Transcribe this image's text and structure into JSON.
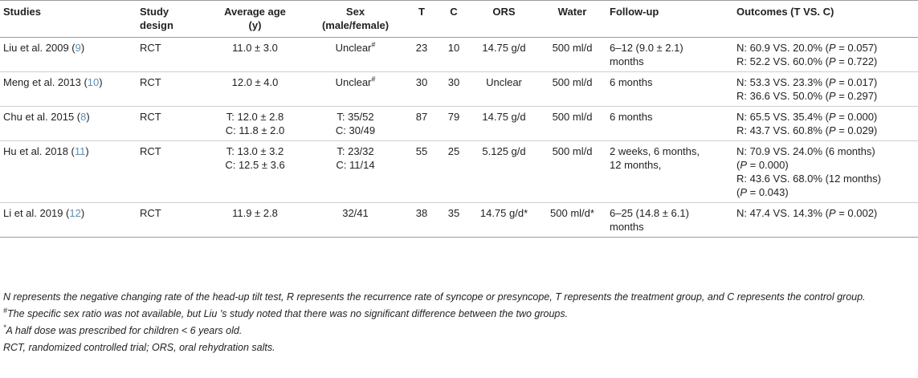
{
  "headers": {
    "studies": "Studies",
    "design_l1": "Study",
    "design_l2": "design",
    "age_l1": "Average age",
    "age_l2": "(y)",
    "sex_l1": "Sex",
    "sex_l2": "(male/female)",
    "t": "T",
    "c": "C",
    "ors": "ORS",
    "water": "Water",
    "followup": "Follow-up",
    "outcomes": "Outcomes (T VS. C)"
  },
  "rows": [
    {
      "study": "Liu et al. 2009 (",
      "ref": "9",
      "close": ")",
      "design": "RCT",
      "age1": "11.0 ± 3.0",
      "age2": "",
      "sex1": "Unclear",
      "sex_mark": "#",
      "sex2": "",
      "t": "23",
      "c": "10",
      "ors": "14.75 g/d",
      "ors_mark": "",
      "water": "500 ml/d",
      "water_mark": "",
      "fu1": "6–12 (9.0 ± 2.1)",
      "fu2": "months",
      "o1": "N: 60.9 VS. 20.0% (",
      "o1p": "P",
      "o1r": " = 0.057)",
      "o2": "R: 52.2 VS. 60.0% (",
      "o2p": "P",
      "o2r": " = 0.722)",
      "o3": "",
      "o3p": "",
      "o3r": "",
      "o4": "",
      "o4p": "",
      "o4r": ""
    },
    {
      "study": "Meng et al. 2013 (",
      "ref": "10",
      "close": ")",
      "design": "RCT",
      "age1": "12.0 ± 4.0",
      "age2": "",
      "sex1": "Unclear",
      "sex_mark": "#",
      "sex2": "",
      "t": "30",
      "c": "30",
      "ors": "Unclear",
      "ors_mark": "",
      "water": "500 ml/d",
      "water_mark": "",
      "fu1": "6 months",
      "fu2": "",
      "o1": "N: 53.3 VS. 23.3% (",
      "o1p": "P",
      "o1r": " = 0.017)",
      "o2": "R: 36.6 VS. 50.0% (",
      "o2p": "P",
      "o2r": " = 0.297)",
      "o3": "",
      "o3p": "",
      "o3r": "",
      "o4": "",
      "o4p": "",
      "o4r": ""
    },
    {
      "study": "Chu et al. 2015 (",
      "ref": "8",
      "close": ")",
      "design": "RCT",
      "age1": "T: 12.0 ± 2.8",
      "age2": "C: 11.8 ± 2.0",
      "sex1": "T: 35/52",
      "sex_mark": "",
      "sex2": "C: 30/49",
      "t": "87",
      "c": "79",
      "ors": "14.75 g/d",
      "ors_mark": "",
      "water": "500 ml/d",
      "water_mark": "",
      "fu1": "6 months",
      "fu2": "",
      "o1": "N: 65.5 VS. 35.4% (",
      "o1p": "P",
      "o1r": " = 0.000)",
      "o2": "R: 43.7 VS. 60.8% (",
      "o2p": "P",
      "o2r": " = 0.029)",
      "o3": "",
      "o3p": "",
      "o3r": "",
      "o4": "",
      "o4p": "",
      "o4r": ""
    },
    {
      "study": "Hu et al. 2018 (",
      "ref": "11",
      "close": ")",
      "design": "RCT",
      "age1": "T: 13.0 ± 3.2",
      "age2": "C: 12.5 ± 3.6",
      "sex1": "T: 23/32",
      "sex_mark": "",
      "sex2": "C: 11/14",
      "t": "55",
      "c": "25",
      "ors": "5.125 g/d",
      "ors_mark": "",
      "water": "500 ml/d",
      "water_mark": "",
      "fu1": "2 weeks, 6 months,",
      "fu2": "12 months,",
      "o1": "N: 70.9 VS. 24.0% (6 months)",
      "o1p": "",
      "o1r": "",
      "o2": "(",
      "o2p": "P",
      "o2r": " = 0.000)",
      "o3": "R: 43.6 VS. 68.0% (12 months)",
      "o3p": "",
      "o3r": "",
      "o4": "(",
      "o4p": "P",
      "o4r": " = 0.043)"
    },
    {
      "study": "Li et al. 2019 (",
      "ref": "12",
      "close": ")",
      "design": "RCT",
      "age1": "11.9 ± 2.8",
      "age2": "",
      "sex1": "32/41",
      "sex_mark": "",
      "sex2": "",
      "t": "38",
      "c": "35",
      "ors": "14.75 g/d",
      "ors_mark": "*",
      "water": "500 ml/d",
      "water_mark": "*",
      "fu1": "6–25 (14.8 ± 6.1)",
      "fu2": "months",
      "o1": "N: 47.4 VS. 14.3% (",
      "o1p": "P",
      "o1r": " = 0.002)",
      "o2": "",
      "o2p": "",
      "o2r": "",
      "o3": "",
      "o3p": "",
      "o3r": "",
      "o4": "",
      "o4p": "",
      "o4r": ""
    }
  ],
  "notes": {
    "n1": "N represents the negative changing rate of the head-up tilt test, R represents the recurrence rate of syncope or presyncope, T represents the treatment group, and C represents the control group.",
    "n2_mark": "#",
    "n2": "The specific sex ratio was not available, but Liu ’s study noted that there was no significant difference between the two groups.",
    "n3_mark": "*",
    "n3": "A half dose was prescribed for children < 6 years old.",
    "n4": "RCT, randomized controlled trial; ORS, oral rehydration salts."
  }
}
